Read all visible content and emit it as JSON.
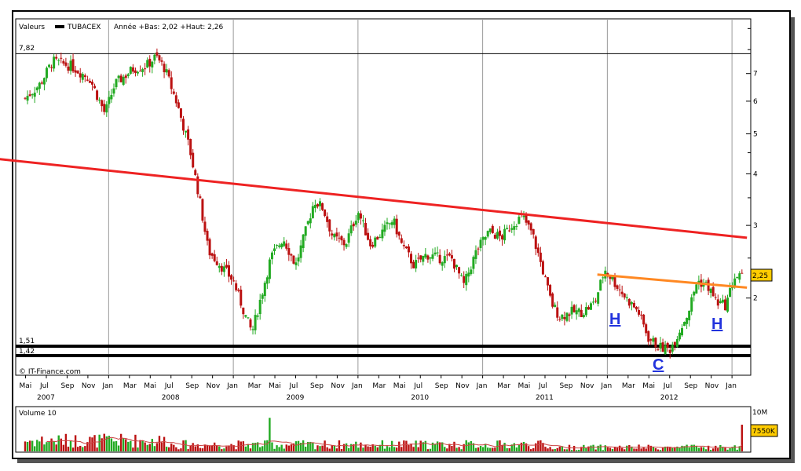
{
  "header": {
    "valeurs_label": "Valeurs",
    "ticker": "TUBACEX",
    "range_text": "Année +Bas: 2,02 +Haut: 2,26"
  },
  "copyright": "© IT-Finance.com",
  "volume_label": "Volume 10",
  "volume_axis_tick": "10M",
  "volume_badge": "7550K",
  "price_badge": "2,25",
  "level_labels": {
    "top": "7,82",
    "support1": "1,51",
    "support2": "1,42"
  },
  "annotations": [
    "H",
    "C",
    "H"
  ],
  "colors": {
    "up": "#22aa22",
    "down": "#bb1111",
    "red_line": "#ee2222",
    "orange_line": "#ff8822",
    "support": "#000000",
    "badge": "#ffcc00"
  },
  "chart_data": {
    "type": "candlestick",
    "title": "TUBACEX",
    "y_scale": "log",
    "ylim": [
      1.3,
      9.5
    ],
    "yticks": [
      "7",
      "6",
      "5",
      "4",
      "3",
      "2"
    ],
    "x_month_labels": [
      "Mai",
      "Jul",
      "Sep",
      "Nov",
      "Jan",
      "Mar",
      "Mai",
      "Jul",
      "Sep",
      "Nov",
      "Jan",
      "Mar",
      "Mai",
      "Jul",
      "Sep",
      "Nov",
      "Jan",
      "Mar",
      "Mai",
      "Jul",
      "Sep",
      "Nov",
      "Jan",
      "Mar",
      "Mai",
      "Jul",
      "Sep",
      "Nov",
      "Jan",
      "Mar",
      "Mai",
      "Jul",
      "Sep",
      "Nov",
      "Jan"
    ],
    "x_year_labels": [
      "2007",
      "2008",
      "2009",
      "2010",
      "2011",
      "2012"
    ],
    "horizontal_levels": [
      7.82,
      1.51,
      1.42
    ],
    "last_price": 2.25,
    "price_path": [
      [
        2007.33,
        6.1
      ],
      [
        2007.45,
        6.6
      ],
      [
        2007.55,
        7.5
      ],
      [
        2007.7,
        7.3
      ],
      [
        2007.85,
        6.8
      ],
      [
        2007.97,
        5.6
      ],
      [
        2008.05,
        6.6
      ],
      [
        2008.2,
        7.2
      ],
      [
        2008.3,
        7.3
      ],
      [
        2008.38,
        7.7
      ],
      [
        2008.45,
        7.2
      ],
      [
        2008.55,
        5.9
      ],
      [
        2008.65,
        4.6
      ],
      [
        2008.72,
        3.6
      ],
      [
        2008.8,
        2.6
      ],
      [
        2008.9,
        2.4
      ],
      [
        2009.0,
        2.2
      ],
      [
        2009.1,
        1.8
      ],
      [
        2009.15,
        1.65
      ],
      [
        2009.22,
        2.0
      ],
      [
        2009.3,
        2.5
      ],
      [
        2009.4,
        2.8
      ],
      [
        2009.5,
        2.4
      ],
      [
        2009.58,
        2.9
      ],
      [
        2009.65,
        3.45
      ],
      [
        2009.72,
        3.3
      ],
      [
        2009.8,
        2.8
      ],
      [
        2009.9,
        2.7
      ],
      [
        2010.0,
        3.25
      ],
      [
        2010.1,
        2.7
      ],
      [
        2010.2,
        2.9
      ],
      [
        2010.28,
        3.1
      ],
      [
        2010.35,
        2.7
      ],
      [
        2010.45,
        2.4
      ],
      [
        2010.55,
        2.55
      ],
      [
        2010.65,
        2.5
      ],
      [
        2010.75,
        2.5
      ],
      [
        2010.85,
        2.15
      ],
      [
        2010.95,
        2.6
      ],
      [
        2011.05,
        2.9
      ],
      [
        2011.15,
        2.8
      ],
      [
        2011.25,
        3.05
      ],
      [
        2011.32,
        3.15
      ],
      [
        2011.4,
        2.85
      ],
      [
        2011.48,
        2.35
      ],
      [
        2011.55,
        1.95
      ],
      [
        2011.62,
        1.8
      ],
      [
        2011.7,
        1.85
      ],
      [
        2011.8,
        1.85
      ],
      [
        2011.9,
        1.95
      ],
      [
        2011.98,
        2.35
      ],
      [
        2012.05,
        2.2
      ],
      [
        2012.15,
        2.0
      ],
      [
        2012.25,
        1.85
      ],
      [
        2012.33,
        1.6
      ],
      [
        2012.42,
        1.52
      ],
      [
        2012.5,
        1.5
      ],
      [
        2012.55,
        1.6
      ],
      [
        2012.65,
        1.85
      ],
      [
        2012.72,
        2.2
      ],
      [
        2012.8,
        2.15
      ],
      [
        2012.88,
        1.95
      ],
      [
        2012.95,
        1.92
      ],
      [
        2013.02,
        2.25
      ]
    ],
    "trendlines": [
      {
        "color": "red",
        "from": [
          2007.1,
          4.35
        ],
        "to": [
          2013.12,
          2.8
        ]
      },
      {
        "color": "orange",
        "from": [
          2011.92,
          2.28
        ],
        "to": [
          2013.12,
          2.12
        ]
      }
    ],
    "volume": {
      "max": 10,
      "unit": "M",
      "last": 7.55
    }
  }
}
